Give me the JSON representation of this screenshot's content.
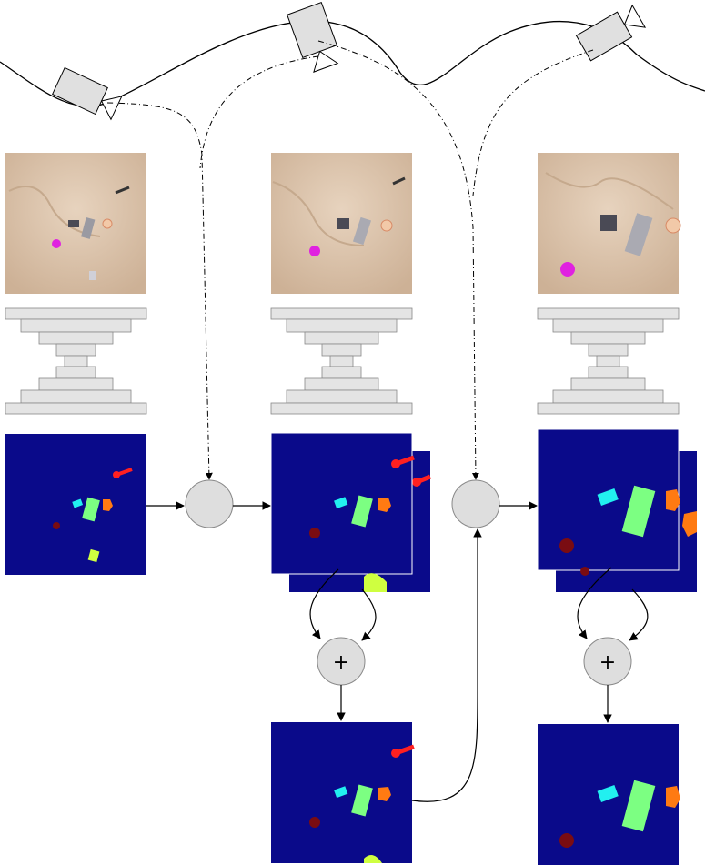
{
  "diagram": {
    "fusion_symbol": "+",
    "colors": {
      "background_map": "#0a0a8a",
      "sand": "#d9c1a8",
      "encoder_fill": "#e4e4e4",
      "node_fill": "#dedede",
      "cyan": "#22f0f0",
      "green": "#7cff82",
      "orange": "#ff7a12",
      "red": "#ff2020",
      "yellow_green": "#cfff40",
      "dark_red": "#7a0c12"
    },
    "icons": [
      "camera-icon",
      "encoder-decoder-icon",
      "warp-node-icon",
      "add-node-icon"
    ]
  }
}
